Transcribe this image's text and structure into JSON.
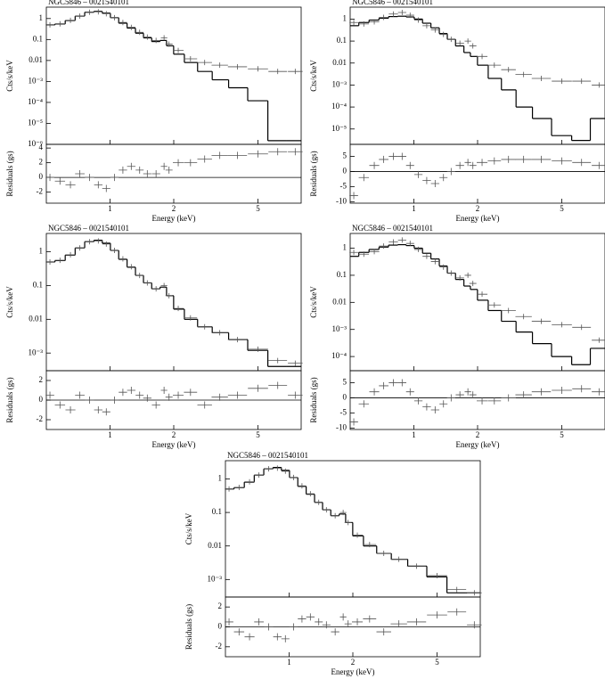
{
  "chart_data": [
    {
      "type": "spectrum",
      "title": "NGC5846 – 0021540101",
      "x_label": "Energy (keV)",
      "y_label": "Cts/s/keV",
      "residual_label": "Residuals (gs)",
      "xlog": true,
      "ylog": true,
      "xlim": [
        0.5,
        8
      ],
      "xticks": [
        1,
        2,
        5
      ],
      "ylim": [
        1e-06,
        3.5
      ],
      "yticks": [
        1,
        0.1,
        0.01,
        {
          "value": 0.001,
          "label": "10⁻³"
        },
        {
          "value": 0.0001,
          "label": "10⁻⁴"
        },
        {
          "value": 1e-05,
          "label": "10⁻⁵"
        },
        {
          "value": 1e-06,
          "label": "10⁻⁶"
        }
      ],
      "residual_ylim": [
        -3.5,
        4.5
      ],
      "residual_yticks": [
        -2,
        0,
        2,
        4
      ],
      "x": [
        0.52,
        0.58,
        0.65,
        0.72,
        0.8,
        0.88,
        0.96,
        1.05,
        1.15,
        1.26,
        1.38,
        1.5,
        1.65,
        1.8,
        1.9,
        2.1,
        2.4,
        2.8,
        3.3,
        4.0,
        5.0,
        6.2,
        7.5
      ],
      "model": [
        0.5,
        0.55,
        0.8,
        1.3,
        2.0,
        2.2,
        1.8,
        1.1,
        0.6,
        0.35,
        0.2,
        0.12,
        0.08,
        0.09,
        0.05,
        0.02,
        0.008,
        0.003,
        0.0012,
        0.0005,
        0.00012,
        1.5e-06,
        1.5e-06
      ],
      "data": [
        0.5,
        0.56,
        0.82,
        1.3,
        2.0,
        2.1,
        1.7,
        1.1,
        0.65,
        0.38,
        0.22,
        0.13,
        0.09,
        0.12,
        0.06,
        0.03,
        0.012,
        0.008,
        0.006,
        0.005,
        0.004,
        0.003,
        0.003
      ],
      "residuals": [
        0,
        -0.5,
        -1,
        0.5,
        0,
        -1,
        -1.5,
        0,
        1,
        1.5,
        1,
        0.5,
        0.5,
        1.5,
        1,
        2,
        2,
        2.5,
        3,
        3,
        3.2,
        3.5,
        3.5
      ],
      "model_color": "#000000",
      "data_color": "#555555"
    },
    {
      "type": "spectrum",
      "title": "NGC5846 – 0021540101",
      "x_label": "Energy (keV)",
      "y_label": "Cts/s/keV",
      "residual_label": "Residuals (gs)",
      "xlog": true,
      "ylog": true,
      "xlim": [
        0.5,
        8
      ],
      "xticks": [
        1,
        2,
        5
      ],
      "ylim": [
        2e-06,
        3.5
      ],
      "yticks": [
        1,
        0.1,
        0.01,
        {
          "value": 0.001,
          "label": "10⁻³"
        },
        {
          "value": 0.0001,
          "label": "10⁻⁴"
        },
        {
          "value": 1e-05,
          "label": "10⁻⁵"
        }
      ],
      "residual_ylim": [
        -10.5,
        9
      ],
      "residual_yticks": [
        -10,
        -5,
        0,
        5
      ],
      "x": [
        0.52,
        0.58,
        0.65,
        0.72,
        0.8,
        0.88,
        0.96,
        1.05,
        1.15,
        1.26,
        1.38,
        1.5,
        1.65,
        1.8,
        1.9,
        2.1,
        2.4,
        2.8,
        3.3,
        4.0,
        5.0,
        6.2,
        7.5
      ],
      "model": [
        0.5,
        0.7,
        0.9,
        1.1,
        1.3,
        1.35,
        1.25,
        1.0,
        0.65,
        0.4,
        0.22,
        0.12,
        0.06,
        0.03,
        0.02,
        0.008,
        0.002,
        0.0006,
        0.0001,
        3e-05,
        5e-06,
        3e-06,
        3e-05
      ],
      "data": [
        0.7,
        0.6,
        0.75,
        1.2,
        1.7,
        2.0,
        1.5,
        0.9,
        0.5,
        0.32,
        0.2,
        0.12,
        0.08,
        0.1,
        0.06,
        0.02,
        0.008,
        0.005,
        0.003,
        0.002,
        0.0015,
        0.0015,
        0.001
      ],
      "residuals": [
        -8,
        -2,
        2,
        4,
        5,
        5,
        2,
        -1,
        -3,
        -4,
        -2,
        0,
        2,
        3,
        2,
        3,
        3.5,
        4,
        4,
        4,
        3.5,
        3,
        2
      ],
      "model_color": "#000000",
      "data_color": "#555555"
    },
    {
      "type": "spectrum",
      "title": "NGC5846 – 0021540101",
      "x_label": "Energy (keV)",
      "y_label": "Cts/s/keV",
      "residual_label": "Residuals (gs)",
      "xlog": true,
      "ylog": true,
      "xlim": [
        0.5,
        8
      ],
      "xticks": [
        1,
        2,
        5
      ],
      "ylim": [
        0.0003,
        3.5
      ],
      "yticks": [
        1,
        0.1,
        0.01,
        {
          "value": 0.001,
          "label": "10⁻³"
        }
      ],
      "residual_ylim": [
        -3,
        3
      ],
      "residual_yticks": [
        -2,
        0,
        2
      ],
      "x": [
        0.52,
        0.58,
        0.65,
        0.72,
        0.8,
        0.88,
        0.96,
        1.05,
        1.15,
        1.26,
        1.38,
        1.5,
        1.65,
        1.8,
        1.9,
        2.1,
        2.4,
        2.8,
        3.3,
        4.0,
        5.0,
        6.2,
        7.5
      ],
      "model": [
        0.5,
        0.55,
        0.8,
        1.3,
        2.0,
        2.2,
        1.8,
        1.1,
        0.6,
        0.35,
        0.2,
        0.12,
        0.08,
        0.09,
        0.05,
        0.02,
        0.01,
        0.006,
        0.004,
        0.0025,
        0.0012,
        0.0004,
        0.0004
      ],
      "data": [
        0.5,
        0.56,
        0.82,
        1.3,
        2.0,
        2.1,
        1.7,
        1.1,
        0.62,
        0.36,
        0.2,
        0.12,
        0.08,
        0.1,
        0.05,
        0.021,
        0.011,
        0.006,
        0.004,
        0.0025,
        0.0013,
        0.0006,
        0.0005
      ],
      "residuals": [
        0.5,
        -0.5,
        -1,
        0.5,
        0,
        -1,
        -1.2,
        0,
        0.8,
        1,
        0.5,
        0.2,
        -0.5,
        1,
        0.3,
        0.5,
        0.8,
        -0.5,
        0.3,
        0.5,
        1.2,
        1.5,
        0.5
      ],
      "model_color": "#000000",
      "data_color": "#555555"
    },
    {
      "type": "spectrum",
      "title": "NGC5846 – 0021540101",
      "x_label": "Energy (keV)",
      "y_label": "Cts/s/keV",
      "residual_label": "Residuals (gs)",
      "xlog": true,
      "ylog": true,
      "xlim": [
        0.5,
        8
      ],
      "xticks": [
        1,
        2,
        5
      ],
      "ylim": [
        3e-05,
        3.5
      ],
      "yticks": [
        1,
        0.1,
        0.01,
        {
          "value": 0.001,
          "label": "10⁻³"
        },
        {
          "value": 0.0001,
          "label": "10⁻⁴"
        }
      ],
      "residual_ylim": [
        -10.5,
        9
      ],
      "residual_yticks": [
        -10,
        -5,
        0,
        5
      ],
      "x": [
        0.52,
        0.58,
        0.65,
        0.72,
        0.8,
        0.88,
        0.96,
        1.05,
        1.15,
        1.26,
        1.38,
        1.5,
        1.65,
        1.8,
        1.9,
        2.1,
        2.4,
        2.8,
        3.3,
        4.0,
        5.0,
        6.2,
        7.5
      ],
      "model": [
        0.5,
        0.7,
        0.9,
        1.1,
        1.3,
        1.35,
        1.25,
        1.0,
        0.65,
        0.4,
        0.22,
        0.12,
        0.07,
        0.04,
        0.03,
        0.012,
        0.005,
        0.002,
        0.0008,
        0.0003,
        0.0001,
        5e-05,
        0.0002
      ],
      "data": [
        0.7,
        0.6,
        0.75,
        1.2,
        1.7,
        2.0,
        1.5,
        0.9,
        0.5,
        0.32,
        0.2,
        0.12,
        0.08,
        0.1,
        0.05,
        0.02,
        0.008,
        0.005,
        0.003,
        0.002,
        0.0015,
        0.0012,
        0.0004
      ],
      "residuals": [
        -8,
        -2,
        2,
        4,
        5,
        5,
        2,
        -1,
        -3,
        -4,
        -2,
        0,
        1,
        2,
        1,
        -1,
        -1,
        0,
        1,
        2,
        2.5,
        3,
        2
      ],
      "model_color": "#000000",
      "data_color": "#555555"
    },
    {
      "type": "spectrum",
      "title": "NGC5846 – 0021540101",
      "x_label": "Energy (keV)",
      "y_label": "Cts/s/keV",
      "residual_label": "Residuals (gs)",
      "xlog": true,
      "ylog": true,
      "xlim": [
        0.5,
        8
      ],
      "xticks": [
        1,
        2,
        5
      ],
      "ylim": [
        0.0003,
        3.5
      ],
      "yticks": [
        1,
        0.1,
        0.01,
        {
          "value": 0.001,
          "label": "10⁻³"
        }
      ],
      "residual_ylim": [
        -3,
        3
      ],
      "residual_yticks": [
        -2,
        0,
        2
      ],
      "x": [
        0.52,
        0.58,
        0.65,
        0.72,
        0.8,
        0.88,
        0.96,
        1.05,
        1.15,
        1.26,
        1.38,
        1.5,
        1.65,
        1.8,
        1.9,
        2.1,
        2.4,
        2.8,
        3.3,
        4.0,
        5.0,
        6.2,
        7.5
      ],
      "model": [
        0.5,
        0.55,
        0.8,
        1.3,
        2.0,
        2.2,
        1.8,
        1.1,
        0.6,
        0.35,
        0.2,
        0.12,
        0.08,
        0.09,
        0.05,
        0.02,
        0.01,
        0.006,
        0.004,
        0.0025,
        0.0012,
        0.0004,
        0.0004
      ],
      "data": [
        0.5,
        0.56,
        0.82,
        1.3,
        2.0,
        2.1,
        1.7,
        1.1,
        0.62,
        0.36,
        0.2,
        0.12,
        0.08,
        0.1,
        0.05,
        0.021,
        0.011,
        0.006,
        0.004,
        0.0025,
        0.0013,
        0.0005,
        0.0004
      ],
      "residuals": [
        0.5,
        -0.5,
        -1,
        0.5,
        0,
        -1,
        -1.2,
        0,
        0.8,
        1,
        0.5,
        0.2,
        -0.5,
        1,
        0.3,
        0.5,
        0.8,
        -0.5,
        0.3,
        0.5,
        1.2,
        1.5,
        0.2
      ],
      "model_color": "#000000",
      "data_color": "#555555"
    }
  ]
}
